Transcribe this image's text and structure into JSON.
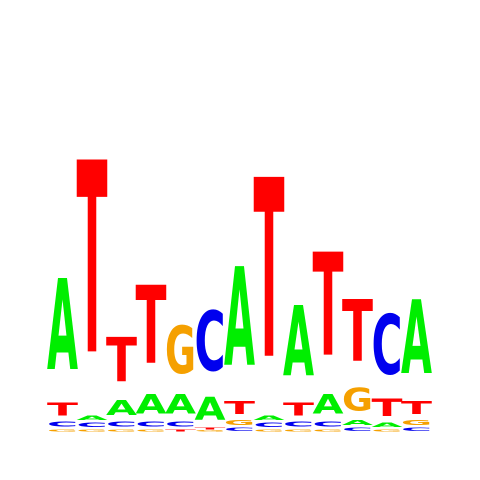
{
  "logo": {
    "colors": {
      "A": "#00ee00",
      "C": "#0000ee",
      "G": "#f5a000",
      "T": "#ff0000"
    },
    "positions": [
      [
        {
          "base": "G",
          "bits": 0.02
        },
        {
          "base": "C",
          "bits": 0.05
        },
        {
          "base": "T",
          "bits": 0.12
        },
        {
          "base": "A",
          "bits": 0.84
        }
      ],
      [
        {
          "base": "G",
          "bits": 0.02
        },
        {
          "base": "C",
          "bits": 0.04
        },
        {
          "base": "A",
          "bits": 0.04
        },
        {
          "base": "T",
          "bits": 1.77
        }
      ],
      [
        {
          "base": "G",
          "bits": 0.02
        },
        {
          "base": "C",
          "bits": 0.05
        },
        {
          "base": "A",
          "bits": 0.14
        },
        {
          "base": "T",
          "bits": 0.41
        }
      ],
      [
        {
          "base": "G",
          "bits": 0.02
        },
        {
          "base": "C",
          "bits": 0.05
        },
        {
          "base": "A",
          "bits": 0.18
        },
        {
          "base": "T",
          "bits": 0.72
        }
      ],
      [
        {
          "base": "T",
          "bits": 0.02
        },
        {
          "base": "C",
          "bits": 0.05
        },
        {
          "base": "A",
          "bits": 0.18
        },
        {
          "base": "G",
          "bits": 0.44
        }
      ],
      [
        {
          "base": "G",
          "bits": 0.01
        },
        {
          "base": "T",
          "bits": 0.02
        },
        {
          "base": "A",
          "bits": 0.21
        },
        {
          "base": "C",
          "bits": 0.55
        }
      ],
      [
        {
          "base": "C",
          "bits": 0.03
        },
        {
          "base": "G",
          "bits": 0.05
        },
        {
          "base": "T",
          "bits": 0.12
        },
        {
          "base": "A",
          "bits": 0.91
        }
      ],
      [
        {
          "base": "G",
          "bits": 0.02
        },
        {
          "base": "C",
          "bits": 0.04
        },
        {
          "base": "A",
          "bits": 0.04
        },
        {
          "base": "T",
          "bits": 1.65
        }
      ],
      [
        {
          "base": "G",
          "bits": 0.02
        },
        {
          "base": "C",
          "bits": 0.05
        },
        {
          "base": "T",
          "bits": 0.12
        },
        {
          "base": "A",
          "bits": 0.65
        }
      ],
      [
        {
          "base": "G",
          "bits": 0.02
        },
        {
          "base": "C",
          "bits": 0.05
        },
        {
          "base": "A",
          "bits": 0.18
        },
        {
          "base": "T",
          "bits": 0.95
        }
      ],
      [
        {
          "base": "C",
          "bits": 0.03
        },
        {
          "base": "A",
          "bits": 0.05
        },
        {
          "base": "G",
          "bits": 0.21
        },
        {
          "base": "T",
          "bits": 0.57
        }
      ],
      [
        {
          "base": "G",
          "bits": 0.02
        },
        {
          "base": "A",
          "bits": 0.04
        },
        {
          "base": "T",
          "bits": 0.16
        },
        {
          "base": "C",
          "bits": 0.55
        }
      ],
      [
        {
          "base": "C",
          "bits": 0.03
        },
        {
          "base": "G",
          "bits": 0.05
        },
        {
          "base": "T",
          "bits": 0.12
        },
        {
          "base": "A",
          "bits": 0.68
        }
      ]
    ]
  }
}
